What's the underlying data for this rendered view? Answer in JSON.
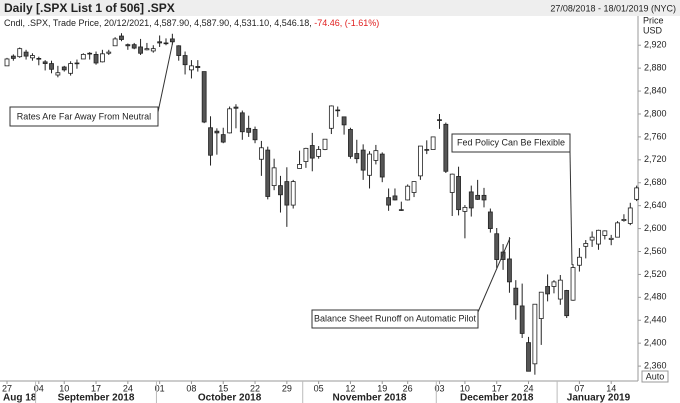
{
  "header": {
    "title": "Daily [.SPX List 1 of 506] .SPX",
    "range": "27/08/2018 - 18/01/2019 (NYC)"
  },
  "chart_data": {
    "type": "candlestick",
    "legend": {
      "label": "Cndl, .SPX, Trade Price, 20/12/2021, 4,587.90, 4,587.90, 4,531.10, 4,546.18,",
      "change": "-74.46, (-1.61%)"
    },
    "y_axis_label": [
      "Price",
      "USD"
    ],
    "auto_label": "Auto",
    "up_color": "#ffffff",
    "down_color": "#555555",
    "line_color": "#222222",
    "x": [
      "2018-08-27",
      "2018-08-28",
      "2018-08-29",
      "2018-08-30",
      "2018-08-31",
      "2018-09-04",
      "2018-09-05",
      "2018-09-06",
      "2018-09-07",
      "2018-09-10",
      "2018-09-11",
      "2018-09-12",
      "2018-09-13",
      "2018-09-14",
      "2018-09-17",
      "2018-09-18",
      "2018-09-19",
      "2018-09-20",
      "2018-09-21",
      "2018-09-24",
      "2018-09-25",
      "2018-09-26",
      "2018-09-27",
      "2018-09-28",
      "2018-10-01",
      "2018-10-02",
      "2018-10-03",
      "2018-10-04",
      "2018-10-05",
      "2018-10-08",
      "2018-10-09",
      "2018-10-10",
      "2018-10-11",
      "2018-10-12",
      "2018-10-15",
      "2018-10-16",
      "2018-10-17",
      "2018-10-18",
      "2018-10-19",
      "2018-10-22",
      "2018-10-23",
      "2018-10-24",
      "2018-10-25",
      "2018-10-26",
      "2018-10-29",
      "2018-10-30",
      "2018-10-31",
      "2018-11-01",
      "2018-11-02",
      "2018-11-05",
      "2018-11-06",
      "2018-11-07",
      "2018-11-08",
      "2018-11-09",
      "2018-11-12",
      "2018-11-13",
      "2018-11-14",
      "2018-11-15",
      "2018-11-16",
      "2018-11-19",
      "2018-11-20",
      "2018-11-21",
      "2018-11-23",
      "2018-11-26",
      "2018-11-27",
      "2018-11-28",
      "2018-11-29",
      "2018-11-30",
      "2018-12-03",
      "2018-12-04",
      "2018-12-06",
      "2018-12-07",
      "2018-12-10",
      "2018-12-11",
      "2018-12-12",
      "2018-12-13",
      "2018-12-14",
      "2018-12-17",
      "2018-12-18",
      "2018-12-19",
      "2018-12-20",
      "2018-12-21",
      "2018-12-24",
      "2018-12-26",
      "2018-12-27",
      "2018-12-28",
      "2018-12-31",
      "2019-01-02",
      "2019-01-03",
      "2019-01-04",
      "2019-01-07",
      "2019-01-08",
      "2019-01-09",
      "2019-01-10",
      "2019-01-11",
      "2019-01-14",
      "2019-01-15",
      "2019-01-16",
      "2019-01-17",
      "2019-01-18"
    ],
    "open": [
      2884,
      2901,
      2900,
      2908,
      2898,
      2897,
      2891,
      2888,
      2868,
      2882,
      2871,
      2889,
      2896,
      2906,
      2904,
      2891,
      2906,
      2919,
      2936,
      2921,
      2921,
      2917,
      2912,
      2910,
      2926,
      2924,
      2931,
      2919,
      2902,
      2877,
      2883,
      2874,
      2776,
      2770,
      2764,
      2767,
      2812,
      2802,
      2775,
      2773,
      2721,
      2737,
      2675,
      2675,
      2682,
      2641,
      2705,
      2717,
      2745,
      2726,
      2738,
      2775,
      2807,
      2795,
      2773,
      2731,
      2737,
      2693,
      2719,
      2730,
      2654,
      2657,
      2633,
      2650,
      2663,
      2692,
      2737,
      2738,
      2790,
      2782,
      2663,
      2691,
      2630,
      2664,
      2658,
      2658,
      2629,
      2591,
      2559,
      2547,
      2496,
      2465,
      2401,
      2364,
      2443,
      2499,
      2499,
      2477,
      2492,
      2475,
      2536,
      2569,
      2580,
      2573,
      2588,
      2581,
      2585,
      2614,
      2609,
      2651
    ],
    "high": [
      2898,
      2904,
      2916,
      2912,
      2906,
      2900,
      2894,
      2893,
      2884,
      2884,
      2892,
      2895,
      2906,
      2908,
      2909,
      2912,
      2912,
      2934,
      2941,
      2923,
      2924,
      2931,
      2924,
      2920,
      2937,
      2932,
      2940,
      2920,
      2909,
      2894,
      2894,
      2874,
      2796,
      2775,
      2776,
      2813,
      2817,
      2806,
      2797,
      2778,
      2753,
      2743,
      2722,
      2692,
      2707,
      2685,
      2736,
      2741,
      2767,
      2744,
      2756,
      2815,
      2813,
      2795,
      2776,
      2755,
      2747,
      2735,
      2746,
      2733,
      2670,
      2670,
      2647,
      2677,
      2682,
      2744,
      2754,
      2760,
      2800,
      2785,
      2696,
      2708,
      2641,
      2675,
      2685,
      2671,
      2635,
      2601,
      2573,
      2585,
      2510,
      2504,
      2411,
      2468,
      2489,
      2520,
      2510,
      2519,
      2493,
      2538,
      2566,
      2580,
      2595,
      2598,
      2597,
      2589,
      2613,
      2625,
      2645,
      2675
    ],
    "low": [
      2884,
      2893,
      2898,
      2895,
      2893,
      2885,
      2876,
      2871,
      2864,
      2874,
      2867,
      2879,
      2896,
      2895,
      2886,
      2890,
      2903,
      2919,
      2927,
      2912,
      2913,
      2903,
      2911,
      2907,
      2917,
      2920,
      2921,
      2893,
      2869,
      2862,
      2874,
      2784,
      2710,
      2729,
      2749,
      2766,
      2775,
      2755,
      2760,
      2749,
      2692,
      2651,
      2667,
      2628,
      2603,
      2635,
      2705,
      2706,
      2700,
      2722,
      2737,
      2765,
      2795,
      2764,
      2722,
      2714,
      2685,
      2670,
      2712,
      2681,
      2631,
      2649,
      2631,
      2649,
      2655,
      2685,
      2730,
      2738,
      2774,
      2697,
      2622,
      2623,
      2583,
      2621,
      2650,
      2637,
      2593,
      2531,
      2528,
      2488,
      2441,
      2409,
      2351,
      2345,
      2397,
      2473,
      2487,
      2467,
      2444,
      2474,
      2525,
      2548,
      2568,
      2563,
      2581,
      2571,
      2585,
      2612,
      2606,
      2648
    ],
    "close": [
      2896,
      2897,
      2914,
      2901,
      2902,
      2896,
      2888,
      2878,
      2872,
      2877,
      2888,
      2889,
      2904,
      2905,
      2889,
      2905,
      2908,
      2931,
      2930,
      2919,
      2915,
      2906,
      2914,
      2914,
      2924,
      2923,
      2926,
      2902,
      2886,
      2884,
      2881,
      2786,
      2728,
      2767,
      2751,
      2809,
      2810,
      2769,
      2768,
      2755,
      2741,
      2656,
      2706,
      2659,
      2641,
      2682,
      2712,
      2740,
      2723,
      2738,
      2756,
      2814,
      2806,
      2781,
      2726,
      2722,
      2702,
      2730,
      2736,
      2690,
      2641,
      2650,
      2633,
      2674,
      2682,
      2744,
      2738,
      2760,
      2790,
      2700,
      2695,
      2633,
      2637,
      2636,
      2651,
      2650,
      2600,
      2546,
      2546,
      2507,
      2467,
      2417,
      2351,
      2468,
      2489,
      2486,
      2507,
      2510,
      2448,
      2532,
      2550,
      2574,
      2585,
      2597,
      2596,
      2583,
      2610,
      2616,
      2636,
      2671
    ],
    "ylim": [
      2334,
      2971
    ],
    "yticks": [
      {
        "value": 2360,
        "label": "2,360"
      },
      {
        "value": 2400,
        "label": "2,400"
      },
      {
        "value": 2440,
        "label": "2,440"
      },
      {
        "value": 2480,
        "label": "2,480"
      },
      {
        "value": 2520,
        "label": "2,520"
      },
      {
        "value": 2560,
        "label": "2,560"
      },
      {
        "value": 2600,
        "label": "2,600"
      },
      {
        "value": 2640,
        "label": "2,640"
      },
      {
        "value": 2680,
        "label": "2,680"
      },
      {
        "value": 2720,
        "label": "2,720"
      },
      {
        "value": 2760,
        "label": "2,760"
      },
      {
        "value": 2800,
        "label": "2,800"
      },
      {
        "value": 2840,
        "label": "2,840"
      },
      {
        "value": 2880,
        "label": "2,880"
      },
      {
        "value": 2920,
        "label": "2,920"
      }
    ],
    "xticks": [
      {
        "value": "2018-08-27",
        "label": "27"
      },
      {
        "value": "2018-09-04",
        "label": "04"
      },
      {
        "value": "2018-09-10",
        "label": "10"
      },
      {
        "value": "2018-09-17",
        "label": "17"
      },
      {
        "value": "2018-09-24",
        "label": "24"
      },
      {
        "value": "2018-10-01",
        "label": "01"
      },
      {
        "value": "2018-10-08",
        "label": "08"
      },
      {
        "value": "2018-10-15",
        "label": "15"
      },
      {
        "value": "2018-10-22",
        "label": "22"
      },
      {
        "value": "2018-10-29",
        "label": "29"
      },
      {
        "value": "2018-11-05",
        "label": "05"
      },
      {
        "value": "2018-11-12",
        "label": "12"
      },
      {
        "value": "2018-11-19",
        "label": "19"
      },
      {
        "value": "2018-11-26",
        "label": "26"
      },
      {
        "value": "2018-12-03",
        "label": "03"
      },
      {
        "value": "2018-12-10",
        "label": "10"
      },
      {
        "value": "2018-12-17",
        "label": "17"
      },
      {
        "value": "2018-12-24",
        "label": "24"
      },
      {
        "value": "2019-01-07",
        "label": "07"
      },
      {
        "value": "2019-01-14",
        "label": "14"
      }
    ],
    "month_labels": [
      {
        "value": "2018-08-27",
        "label": "Aug 18"
      },
      {
        "value": "2018-09-04",
        "label": "September 2018"
      },
      {
        "value": "2018-10-01",
        "label": "October 2018"
      },
      {
        "value": "2018-11-01",
        "label": "November 2018"
      },
      {
        "value": "2018-12-03",
        "label": "December 2018"
      },
      {
        "value": "2019-01-02",
        "label": "January 2019"
      }
    ],
    "annotations": [
      "Rates Are Far Away From Neutral",
      "Fed Policy Can Be Flexible",
      "Balance Sheet Runoff on Automatic Pilot"
    ]
  }
}
